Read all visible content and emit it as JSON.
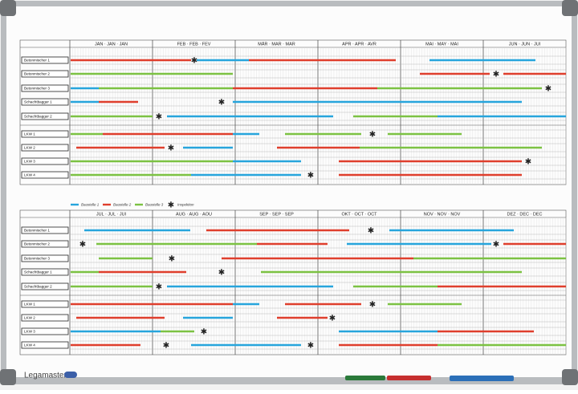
{
  "brand": "Legamaster",
  "legend": [
    "Baustelle 1",
    "Baustelle 2",
    "Baustelle 3",
    "Inspektion"
  ],
  "panels": [
    {
      "months": [
        "JAN · JAN · JAN",
        "FEB · FEB · FEV",
        "MÄR · MAR · MAR",
        "APR · APR · AVR",
        "MAI · MAY · MAI",
        "JUN · JUN · JUI"
      ],
      "rows": [
        "Betonmischer 1",
        "Betonmischer 2",
        "Betonmischer 3",
        "Schachtbagger 1",
        "Schachtbagger 2",
        "LKW 1",
        "LKW 2",
        "LKW 3",
        "LKW 4"
      ]
    },
    {
      "months": [
        "JUL · JUL · JUI",
        "AUG · AUG · AOU",
        "SEP · SEP · SEP",
        "OKT · OCT · OCT",
        "NOV · NOV · NOV",
        "DEZ · DEC · DEC"
      ],
      "rows": [
        "Betonmischer 1",
        "Betonmischer 2",
        "Betonmischer 3",
        "Schachtbagger 1",
        "Schachtbagger 2",
        "LKW 1",
        "LKW 2",
        "LKW 3",
        "LKW 4"
      ]
    }
  ]
}
